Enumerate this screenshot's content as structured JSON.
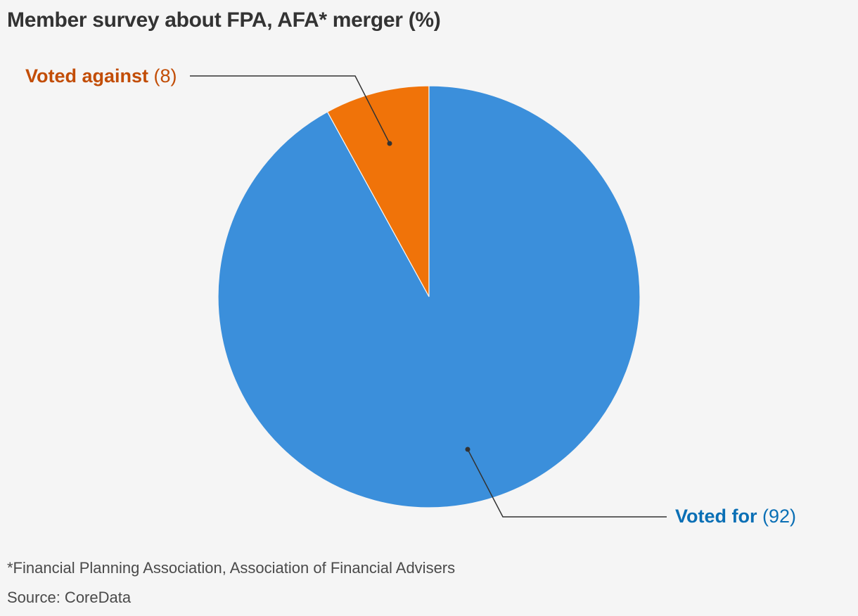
{
  "chart_data": {
    "type": "pie",
    "title": "Member survey about FPA, AFA* merger (%)",
    "slices": [
      {
        "label": "Voted for",
        "value": 92,
        "value_text": "(92)",
        "color": "#3b8fdb",
        "label_color": "#0a6fb5"
      },
      {
        "label": "Voted against",
        "value": 8,
        "value_text": "(8)",
        "color": "#f07309",
        "label_color": "#c24d06"
      }
    ]
  },
  "footnote": "*Financial Planning Association, Association of Financial Advisers",
  "source": "Source: CoreData"
}
